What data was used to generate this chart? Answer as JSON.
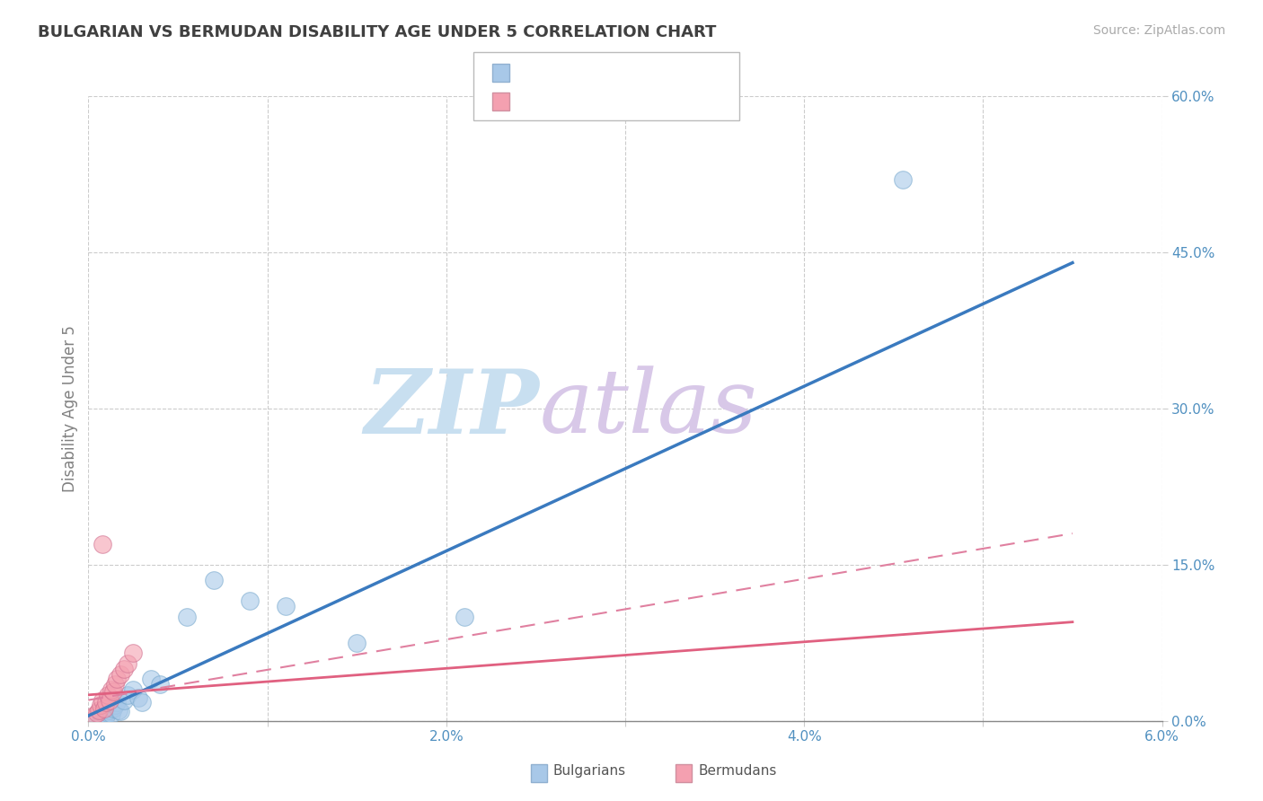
{
  "title": "BULGARIAN VS BERMUDAN DISABILITY AGE UNDER 5 CORRELATION CHART",
  "source": "Source: ZipAtlas.com",
  "ylabel": "Disability Age Under 5",
  "xlim": [
    0.0,
    6.0
  ],
  "ylim": [
    0.0,
    60.0
  ],
  "xticks": [
    0.0,
    1.0,
    2.0,
    3.0,
    4.0,
    5.0,
    6.0
  ],
  "xtick_labels": [
    "0.0%",
    "",
    "2.0%",
    "",
    "4.0%",
    "",
    "6.0%"
  ],
  "ytick_labels": [
    "0.0%",
    "15.0%",
    "30.0%",
    "45.0%",
    "60.0%"
  ],
  "yticks": [
    0.0,
    15.0,
    30.0,
    45.0,
    60.0
  ],
  "blue_color": "#a8c8e8",
  "pink_color": "#f4a0b0",
  "regression_blue_color": "#3a7abf",
  "regression_pink_color": "#e06080",
  "regression_pink_dash_color": "#e080a0",
  "watermark_zip_color": "#c8dff0",
  "watermark_atlas_color": "#d8c8e8",
  "grid_color": "#cccccc",
  "title_color": "#404040",
  "axis_label_color": "#808080",
  "tick_label_color": "#5090c0",
  "source_color": "#aaaaaa",
  "blue_scatter_x": [
    0.05,
    0.07,
    0.08,
    0.09,
    0.1,
    0.11,
    0.12,
    0.13,
    0.14,
    0.15,
    0.16,
    0.17,
    0.18,
    0.2,
    0.22,
    0.25,
    0.28,
    0.3,
    0.35,
    0.4,
    0.55,
    0.7,
    0.9,
    1.1,
    1.5,
    2.1,
    4.55
  ],
  "blue_scatter_y": [
    0.3,
    0.5,
    0.4,
    0.6,
    0.5,
    0.8,
    1.0,
    0.7,
    1.2,
    1.5,
    1.8,
    1.0,
    0.9,
    2.0,
    2.5,
    3.0,
    2.2,
    1.8,
    4.0,
    3.5,
    10.0,
    13.5,
    11.5,
    11.0,
    7.5,
    10.0,
    52.0
  ],
  "pink_scatter_x": [
    0.03,
    0.05,
    0.06,
    0.07,
    0.08,
    0.09,
    0.1,
    0.11,
    0.12,
    0.13,
    0.14,
    0.15,
    0.16,
    0.18,
    0.2,
    0.22,
    0.25,
    0.08
  ],
  "pink_scatter_y": [
    0.5,
    0.8,
    1.0,
    1.5,
    2.0,
    1.2,
    1.8,
    2.5,
    2.0,
    3.0,
    2.8,
    3.5,
    4.0,
    4.5,
    5.0,
    5.5,
    6.5,
    17.0
  ],
  "blue_line_x": [
    0.0,
    5.5
  ],
  "blue_line_y": [
    0.5,
    44.0
  ],
  "pink_line_x": [
    0.0,
    5.5
  ],
  "pink_line_y": [
    2.5,
    9.5
  ],
  "pink_dash_line_x": [
    0.0,
    5.5
  ],
  "pink_dash_line_y": [
    2.0,
    18.0
  ]
}
